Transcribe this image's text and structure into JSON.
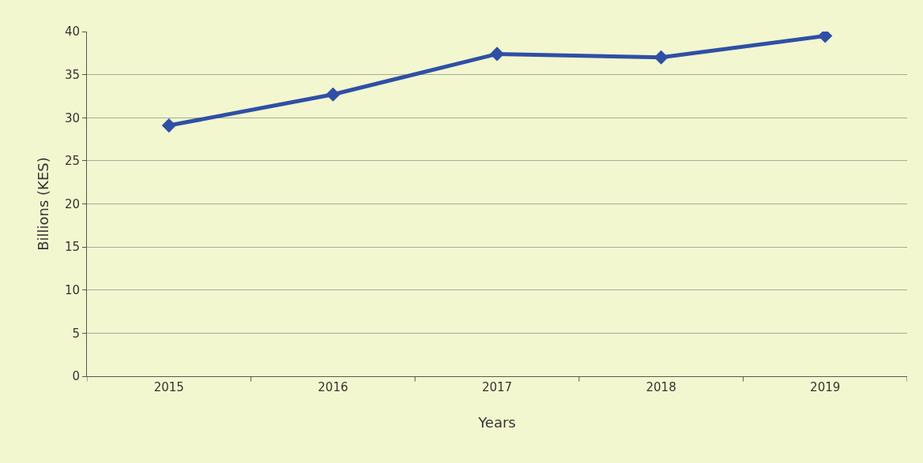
{
  "chart_data": {
    "type": "line",
    "xlabel": "Years",
    "ylabel": "Billions (KES)",
    "categories": [
      "2015",
      "2016",
      "2017",
      "2018",
      "2019"
    ],
    "series": [
      {
        "color": "#2f4fa6",
        "values": [
          29.1,
          32.7,
          37.4,
          37.0,
          39.5
        ]
      }
    ],
    "ylim": [
      0,
      40
    ],
    "yticks": [
      0,
      5,
      10,
      15,
      20,
      25,
      30,
      35,
      40
    ],
    "grid": "y",
    "legend": false,
    "marker": "diamond",
    "line_style": "solid"
  }
}
